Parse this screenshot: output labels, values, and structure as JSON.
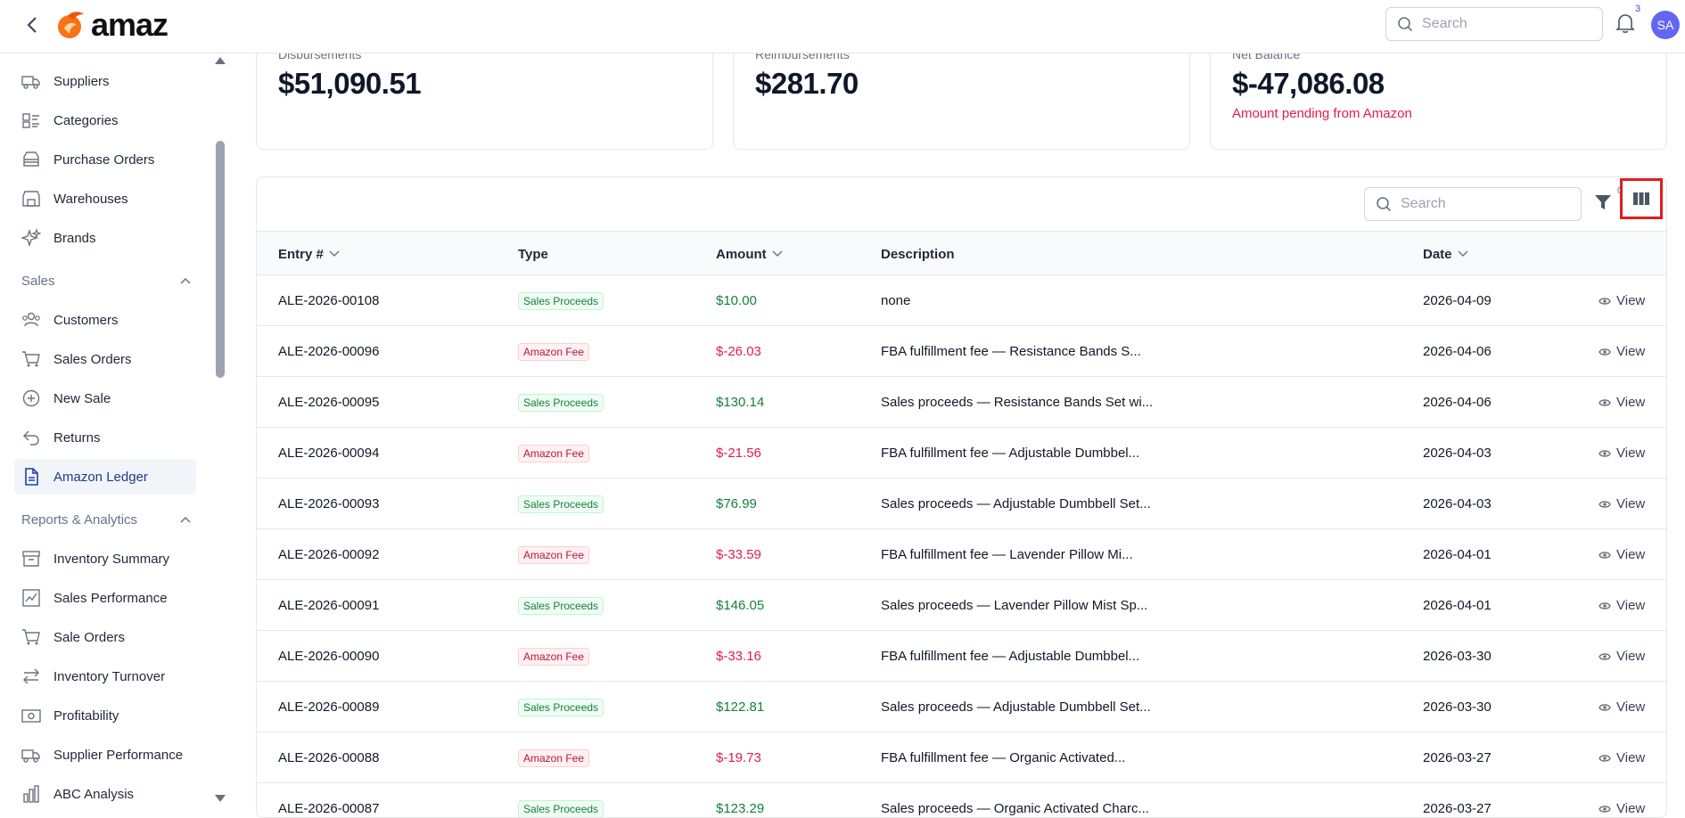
{
  "header": {
    "logo_text": "amaz",
    "search_placeholder": "Search",
    "notification_count": "3",
    "avatar_initials": "SA"
  },
  "sidebar": {
    "items_top": [
      {
        "label": "Suppliers",
        "icon": "truck-icon"
      },
      {
        "label": "Categories",
        "icon": "categories-icon"
      },
      {
        "label": "Purchase Orders",
        "icon": "inbox-icon"
      },
      {
        "label": "Warehouses",
        "icon": "warehouse-icon"
      },
      {
        "label": "Brands",
        "icon": "sparkle-icon"
      }
    ],
    "sales_section": "Sales",
    "sales_items": [
      {
        "label": "Customers",
        "icon": "users-icon"
      },
      {
        "label": "Sales Orders",
        "icon": "cart-icon"
      },
      {
        "label": "New Sale",
        "icon": "plus-circle-icon"
      },
      {
        "label": "Returns",
        "icon": "return-icon"
      },
      {
        "label": "Amazon Ledger",
        "icon": "document-icon",
        "active": true
      }
    ],
    "reports_section": "Reports & Analytics",
    "reports_items": [
      {
        "label": "Inventory Summary",
        "icon": "archive-icon"
      },
      {
        "label": "Sales Performance",
        "icon": "chart-icon"
      },
      {
        "label": "Sale Orders",
        "icon": "cart-icon"
      },
      {
        "label": "Inventory Turnover",
        "icon": "arrows-icon"
      },
      {
        "label": "Profitability",
        "icon": "money-icon"
      },
      {
        "label": "Supplier Performance",
        "icon": "truck-icon"
      },
      {
        "label": "ABC Analysis",
        "icon": "bar-chart-icon"
      }
    ]
  },
  "summary": {
    "disbursements": {
      "label": "Disbursements",
      "value": "$51,090.51"
    },
    "reimbursements": {
      "label": "Reimbursements",
      "value": "$281.70"
    },
    "net_balance": {
      "label": "Net Balance",
      "value": "$-47,086.08",
      "note": "Amount pending from Amazon"
    }
  },
  "table": {
    "search_placeholder": "Search",
    "filter_count": "0",
    "columns": {
      "entry": "Entry #",
      "type": "Type",
      "amount": "Amount",
      "description": "Description",
      "date": "Date"
    },
    "view_label": "View",
    "rows": [
      {
        "entry": "ALE-2026-00108",
        "type": "Sales Proceeds",
        "amount": "$10.00",
        "description": "none",
        "date": "2026-04-09"
      },
      {
        "entry": "ALE-2026-00096",
        "type": "Amazon Fee",
        "amount": "$-26.03",
        "description": "FBA fulfillment fee — Resistance Bands S...",
        "date": "2026-04-06"
      },
      {
        "entry": "ALE-2026-00095",
        "type": "Sales Proceeds",
        "amount": "$130.14",
        "description": "Sales proceeds — Resistance Bands Set wi...",
        "date": "2026-04-06"
      },
      {
        "entry": "ALE-2026-00094",
        "type": "Amazon Fee",
        "amount": "$-21.56",
        "description": "FBA fulfillment fee — Adjustable Dumbbel...",
        "date": "2026-04-03"
      },
      {
        "entry": "ALE-2026-00093",
        "type": "Sales Proceeds",
        "amount": "$76.99",
        "description": "Sales proceeds — Adjustable Dumbbell Set...",
        "date": "2026-04-03"
      },
      {
        "entry": "ALE-2026-00092",
        "type": "Amazon Fee",
        "amount": "$-33.59",
        "description": "FBA fulfillment fee — Lavender Pillow Mi...",
        "date": "2026-04-01"
      },
      {
        "entry": "ALE-2026-00091",
        "type": "Sales Proceeds",
        "amount": "$146.05",
        "description": "Sales proceeds — Lavender Pillow Mist Sp...",
        "date": "2026-04-01"
      },
      {
        "entry": "ALE-2026-00090",
        "type": "Amazon Fee",
        "amount": "$-33.16",
        "description": "FBA fulfillment fee — Adjustable Dumbbel...",
        "date": "2026-03-30"
      },
      {
        "entry": "ALE-2026-00089",
        "type": "Sales Proceeds",
        "amount": "$122.81",
        "description": "Sales proceeds — Adjustable Dumbbell Set...",
        "date": "2026-03-30"
      },
      {
        "entry": "ALE-2026-00088",
        "type": "Amazon Fee",
        "amount": "$-19.73",
        "description": "FBA fulfillment fee — Organic Activated...",
        "date": "2026-03-27"
      },
      {
        "entry": "ALE-2026-00087",
        "type": "Sales Proceeds",
        "amount": "$123.29",
        "description": "Sales proceeds — Organic Activated Charc...",
        "date": "2026-03-27"
      }
    ]
  },
  "colors": {
    "accent": "#6366f1",
    "positive": "#15803d",
    "negative": "#e11d48",
    "highlight_box": "#e11d1d"
  }
}
